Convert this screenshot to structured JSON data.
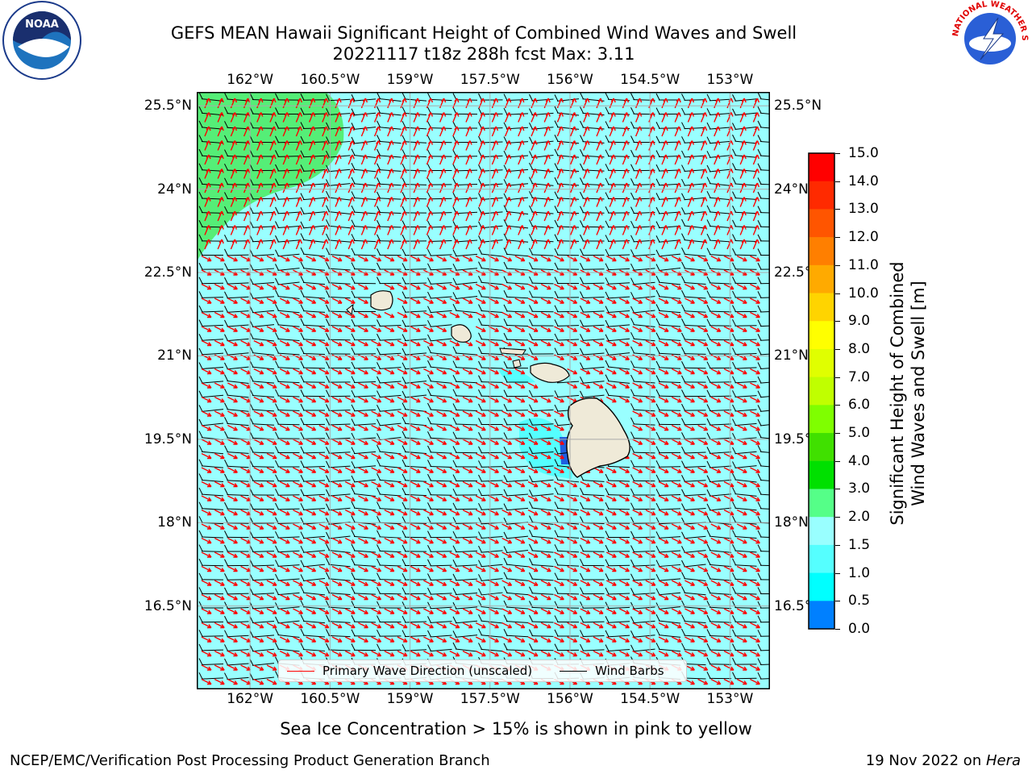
{
  "header": {
    "title_line1": "GEFS MEAN Hawaii Significant Height of Combined Wind Waves and Swell",
    "title_line2": "20221117 t18z 288h fcst   Max: 3.11"
  },
  "logos": {
    "left": "NOAA",
    "right": "NATIONAL WEATHER SERVICE"
  },
  "map": {
    "lon_ticks": [
      "162°W",
      "160.5°W",
      "159°W",
      "157.5°W",
      "156°W",
      "154.5°W",
      "153°W"
    ],
    "lat_ticks": [
      "25.5°N",
      "24°N",
      "22.5°N",
      "21°N",
      "19.5°N",
      "18°N",
      "16.5°N"
    ],
    "lon_values": [
      -162,
      -160.5,
      -159,
      -157.5,
      -156,
      -154.5,
      -153
    ],
    "lat_values": [
      25.5,
      24,
      22.5,
      21,
      19.5,
      18,
      16.5
    ],
    "lon_range": [
      -163,
      -152.25
    ],
    "lat_range": [
      15.0,
      25.75
    ],
    "fill_color": "#99ffff",
    "legend": {
      "wave_label": "Primary Wave Direction (unscaled)",
      "barb_label": "Wind Barbs",
      "wave_color": "#ff0000",
      "barb_color": "#000000"
    }
  },
  "colorbar": {
    "label_line1": "Significant Height of Combined",
    "label_line2": "Wind Waves and Swell [m]",
    "ticks": [
      "15.0",
      "14.0",
      "13.0",
      "12.0",
      "11.0",
      "10.0",
      "9.0",
      "8.0",
      "7.0",
      "6.0",
      "5.0",
      "4.0",
      "3.0",
      "2.0",
      "1.5",
      "1.0",
      "0.5",
      "0.0"
    ],
    "colors": [
      "#ff0000",
      "#ff2a00",
      "#ff5500",
      "#ff7f00",
      "#ffaa00",
      "#ffd400",
      "#ffff00",
      "#e0ff00",
      "#c0ff00",
      "#7fff00",
      "#40e000",
      "#00e000",
      "#55ff88",
      "#99ffff",
      "#55ffff",
      "#00ffff",
      "#0080ff",
      "#0000ff"
    ]
  },
  "notes": {
    "sea_ice": "Sea Ice Concentration > 15% is shown in pink to yellow",
    "branch": "NCEP/EMC/Verification Post Processing Product Generation Branch",
    "date_prefix": "19 Nov 2022 on ",
    "host": "Hera"
  }
}
